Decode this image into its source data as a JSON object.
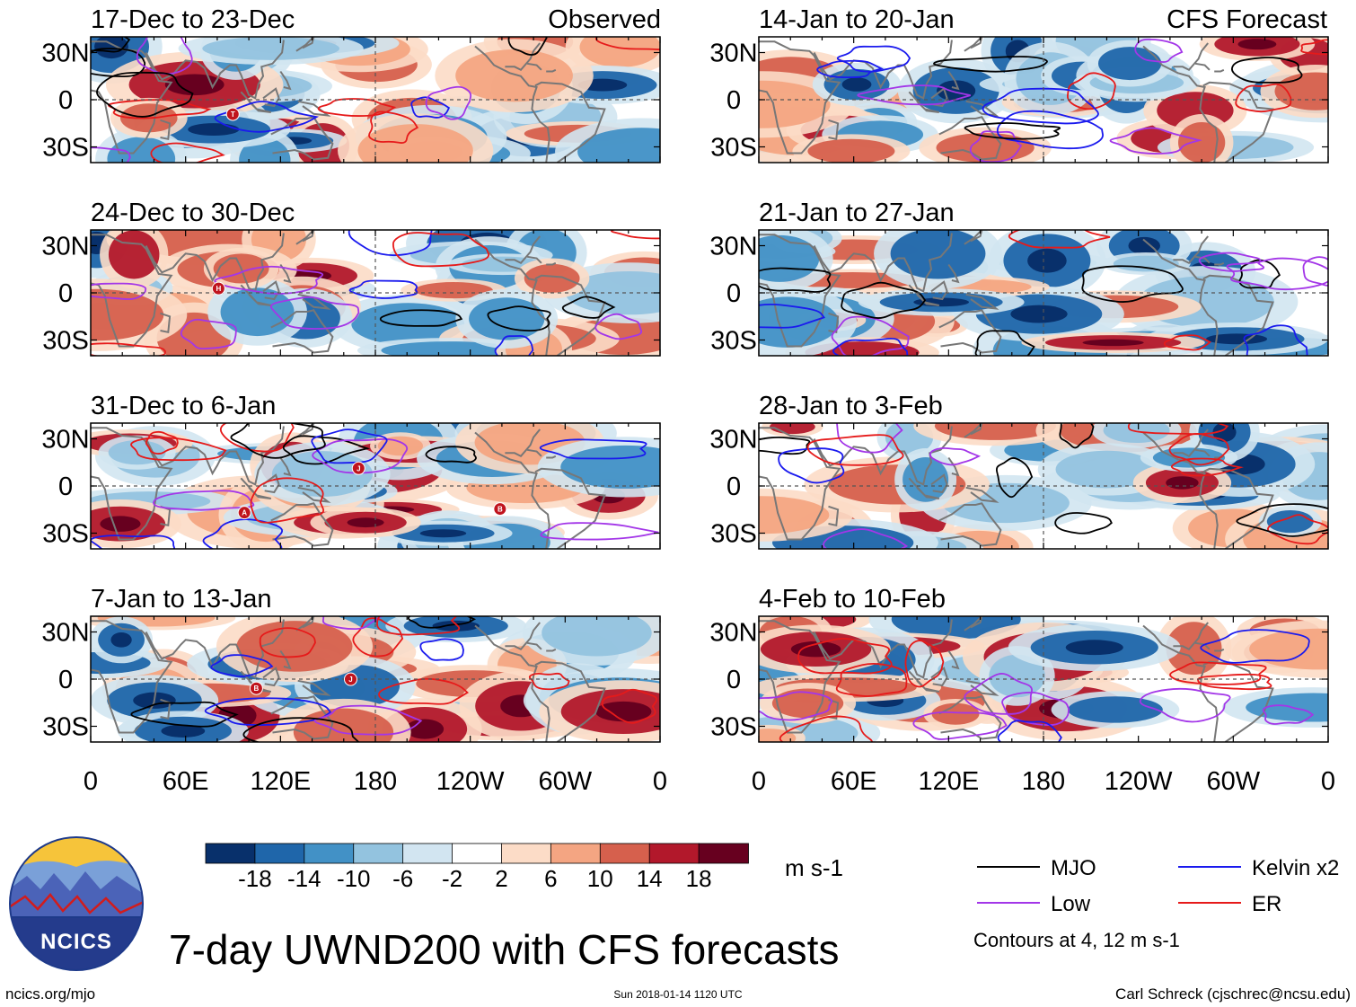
{
  "figure_title": "7-day UWND200 with CFS forecasts",
  "left_header": "Observed",
  "right_header": "CFS Forecast",
  "logo_text": "NCICS",
  "site_url": "ncics.org/mjo",
  "timestamp": "Sun 2018-01-14 1120 UTC",
  "author": "Carl Schreck (cjschrec@ncsu.edu)",
  "colors": {
    "palette": [
      "#08306b",
      "#1f66aa",
      "#4291c6",
      "#93c3df",
      "#d2e5f1",
      "#ffffff",
      "#fcdcc7",
      "#f4a582",
      "#d6604d",
      "#b2182b",
      "#67001f"
    ],
    "mjo": "#000000",
    "kelvin": "#1a1aee",
    "low": "#a336e8",
    "er": "#e61a1a",
    "land": "#777777",
    "grid": "#555555"
  },
  "chart_data": {
    "type": "heatmap",
    "title": "7-day UWND200 with CFS forecasts",
    "variable": "200-hPa zonal wind anomaly",
    "units": "m s-1",
    "colorbar_ticks": [
      "-18",
      "-14",
      "-10",
      "-6",
      "-2",
      "2",
      "6",
      "10",
      "14",
      "18"
    ],
    "x_ticks": [
      "0",
      "60E",
      "120E",
      "180",
      "120W",
      "60W",
      "0"
    ],
    "y_ticks": [
      "30N",
      "0",
      "30S"
    ],
    "xlim": [
      0,
      360
    ],
    "ylim": [
      -40,
      40
    ],
    "legend": [
      {
        "name": "MJO",
        "color": "#000000"
      },
      {
        "name": "Kelvin x2",
        "color": "#1a1aee"
      },
      {
        "name": "Low",
        "color": "#a336e8"
      },
      {
        "name": "ER",
        "color": "#e61a1a"
      }
    ],
    "contour_note": "Contours at 4, 12 m s-1",
    "panels": [
      {
        "title": "17-Dec to 23-Dec",
        "kind": "observed",
        "storms": [
          "T"
        ],
        "seed": 11
      },
      {
        "title": "24-Dec to 30-Dec",
        "kind": "observed",
        "storms": [
          "H"
        ],
        "seed": 23
      },
      {
        "title": "31-Dec to 6-Jan",
        "kind": "observed",
        "storms": [
          "A",
          "J",
          "B"
        ],
        "seed": 37
      },
      {
        "title": "7-Jan to 13-Jan",
        "kind": "observed",
        "storms": [
          "B",
          "J"
        ],
        "seed": 41
      },
      {
        "title": "14-Jan to 20-Jan",
        "kind": "forecast",
        "storms": [],
        "seed": 53
      },
      {
        "title": "21-Jan to 27-Jan",
        "kind": "forecast",
        "storms": [],
        "seed": 67
      },
      {
        "title": "28-Jan to 3-Feb",
        "kind": "forecast",
        "storms": [],
        "seed": 71
      },
      {
        "title": "4-Feb to 10-Feb",
        "kind": "forecast",
        "storms": [],
        "seed": 83
      }
    ]
  }
}
